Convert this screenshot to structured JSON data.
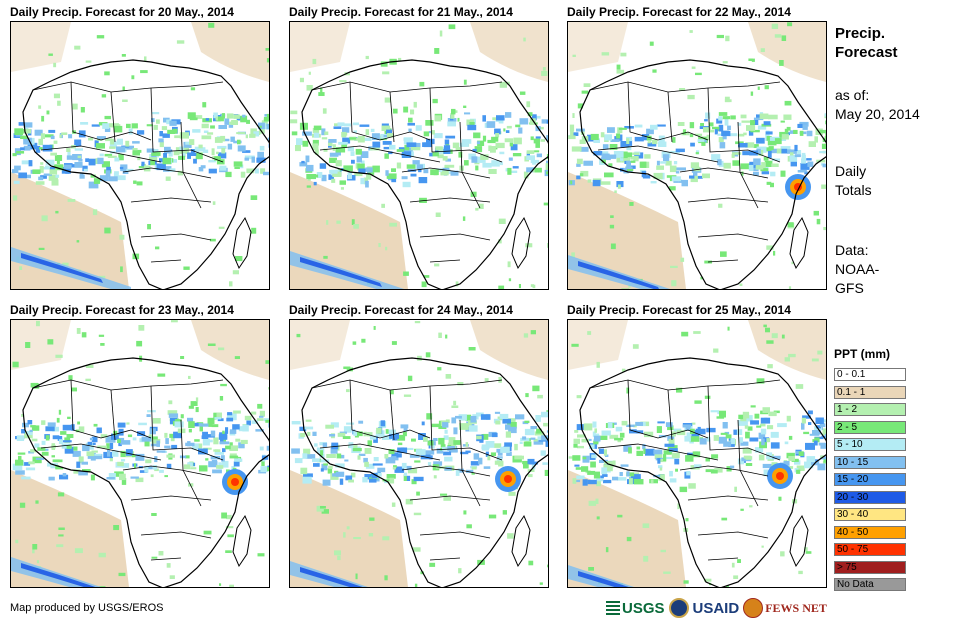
{
  "panels": [
    {
      "title": "Daily Precip. Forecast for 20 May., 2014"
    },
    {
      "title": "Daily Precip. Forecast for 21 May., 2014"
    },
    {
      "title": "Daily Precip. Forecast for 22 May., 2014"
    },
    {
      "title": "Daily Precip. Forecast for 23 May., 2014"
    },
    {
      "title": "Daily Precip. Forecast for 24 May., 2014"
    },
    {
      "title": "Daily Precip. Forecast for 25 May., 2014"
    }
  ],
  "side": {
    "title_line1": "Precip.",
    "title_line2": "Forecast",
    "asof_line1": "as of:",
    "asof_line2": "May 20, 2014",
    "daily_line1": "Daily",
    "daily_line2": "Totals",
    "data_line1": "Data:",
    "data_line2": "NOAA-",
    "data_line3": "GFS"
  },
  "legend": {
    "title": "PPT (mm)",
    "items": [
      {
        "label": "0 - 0.1",
        "color": "#ffffff"
      },
      {
        "label": "0.1 - 1",
        "color": "#ead6b8"
      },
      {
        "label": "1 - 2",
        "color": "#b4f0b0"
      },
      {
        "label": "2 - 5",
        "color": "#78e878"
      },
      {
        "label": "5 - 10",
        "color": "#b4ecf4"
      },
      {
        "label": "10 - 15",
        "color": "#82c0f0"
      },
      {
        "label": "15 - 20",
        "color": "#4696f0"
      },
      {
        "label": "20 - 30",
        "color": "#1e5ae6"
      },
      {
        "label": "30 - 40",
        "color": "#ffe682"
      },
      {
        "label": "40 - 50",
        "color": "#ffa000"
      },
      {
        "label": "50 - 75",
        "color": "#ff3200"
      },
      {
        "label": "> 75",
        "color": "#a01e1e"
      },
      {
        "label": "No Data",
        "color": "#999999"
      }
    ]
  },
  "credit": "Map produced by USGS/EROS",
  "logos": {
    "usgs": "USGS",
    "usaid": "USAID",
    "fews": "FEWS NET"
  }
}
